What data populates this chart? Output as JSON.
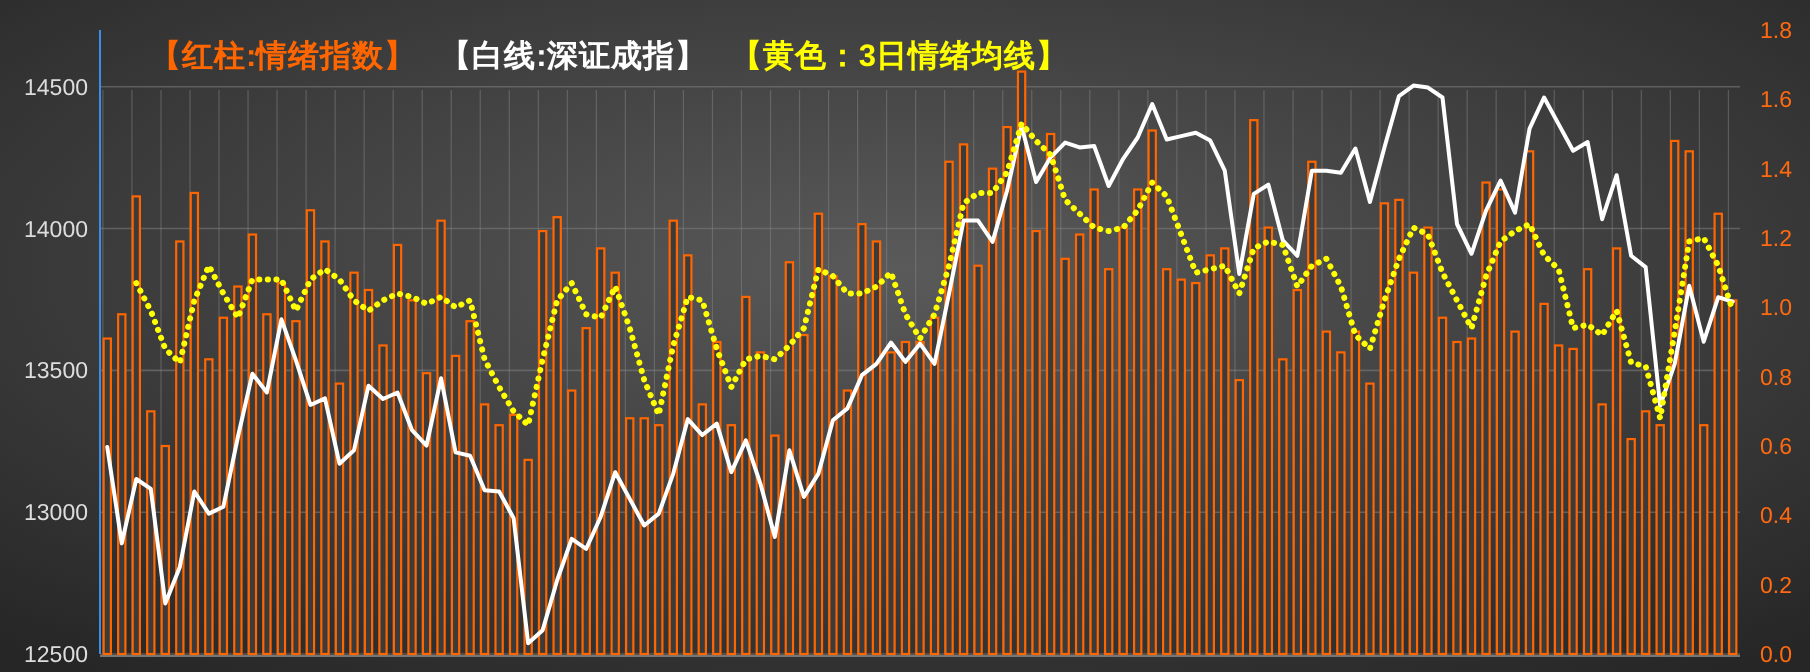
{
  "chart_data": {
    "type": "bar",
    "categories": [
      null,
      null,
      null,
      null,
      null,
      null,
      null,
      null,
      null,
      null,
      null,
      null,
      null,
      null,
      null,
      null,
      null,
      null,
      null,
      null,
      null,
      null,
      null,
      null,
      null,
      null,
      null,
      null,
      null,
      null,
      null,
      null,
      null,
      null,
      null,
      null,
      null,
      null,
      null,
      null,
      null,
      null,
      null,
      null,
      null,
      null,
      null,
      null,
      null,
      null,
      null,
      null,
      null,
      null,
      null,
      null,
      null,
      null,
      null,
      null,
      null,
      null,
      null,
      null,
      null,
      null,
      null,
      null,
      null,
      null,
      null,
      null,
      null,
      null,
      null,
      null,
      null,
      null,
      null,
      null,
      null,
      null,
      null,
      null,
      null,
      null,
      null,
      null,
      null,
      null,
      null,
      null,
      null,
      null,
      null,
      null,
      null,
      null,
      null,
      null,
      null,
      null,
      null,
      null,
      null,
      null,
      null,
      null,
      null,
      null,
      null,
      null,
      null
    ],
    "series": [
      {
        "name": "【红柱:情绪指数】",
        "axis": "y2",
        "color": "#ff6600",
        "values": [
          0.91,
          0.98,
          1.32,
          0.7,
          0.6,
          1.19,
          1.33,
          0.85,
          0.97,
          1.06,
          1.21,
          0.98,
          1.07,
          0.96,
          1.28,
          1.19,
          0.78,
          1.1,
          1.05,
          0.89,
          1.18,
          1.02,
          0.81,
          1.25,
          0.86,
          0.96,
          0.72,
          0.66,
          0.69,
          0.56,
          1.22,
          1.26,
          0.76,
          0.94,
          1.17,
          1.1,
          0.68,
          0.68,
          0.66,
          1.25,
          1.15,
          0.72,
          0.9,
          0.66,
          1.03,
          0.87,
          0.63,
          1.13,
          0.92,
          1.27,
          1.09,
          0.76,
          1.24,
          1.19,
          0.87,
          0.9,
          0.9,
          0.97,
          1.42,
          1.47,
          1.12,
          1.4,
          1.52,
          1.68,
          1.22,
          1.5,
          1.14,
          1.21,
          1.34,
          1.11,
          1.23,
          1.34,
          1.51,
          1.11,
          1.08,
          1.07,
          1.15,
          1.17,
          0.79,
          1.54,
          1.23,
          0.85,
          1.05,
          1.42,
          0.93,
          0.87,
          0.93,
          0.78,
          1.3,
          1.31,
          1.1,
          1.23,
          0.97,
          0.9,
          0.91,
          1.36,
          1.34,
          0.93,
          1.45,
          1.01,
          0.89,
          0.88,
          1.11,
          0.72,
          1.17,
          0.62,
          0.7,
          0.66,
          1.48,
          1.45,
          0.66,
          1.27,
          1.02
        ]
      },
      {
        "name": "【白线:深证成指】",
        "type": "line",
        "axis": "y",
        "color": "#ffffff",
        "line_style": "solid",
        "values": [
          13230,
          12890,
          13117,
          13082,
          12678,
          12807,
          13073,
          12995,
          13019,
          13265,
          13488,
          13422,
          13680,
          13535,
          13378,
          13401,
          13171,
          13218,
          13446,
          13399,
          13422,
          13289,
          13235,
          13472,
          13211,
          13199,
          13077,
          13073,
          12979,
          12538,
          12584,
          12760,
          12906,
          12871,
          12984,
          13141,
          13047,
          12953,
          12995,
          13136,
          13328,
          13272,
          13312,
          13141,
          13253,
          13101,
          12913,
          13218,
          13054,
          13136,
          13324,
          13366,
          13483,
          13523,
          13598,
          13530,
          13594,
          13523,
          13770,
          14028,
          14028,
          13953,
          14134,
          14361,
          14164,
          14251,
          14303,
          14286,
          14291,
          14150,
          14246,
          14321,
          14439,
          14314,
          14326,
          14338,
          14310,
          14204,
          13840,
          14122,
          14155,
          13958,
          13904,
          14204,
          14204,
          14197,
          14282,
          14094,
          14286,
          14467,
          14504,
          14497,
          14462,
          14016,
          13911,
          14063,
          14169,
          14056,
          14352,
          14462,
          14368,
          14274,
          14305,
          14033,
          14188,
          13904,
          13864,
          13375,
          13523,
          13798,
          13601,
          13758,
          13742
        ]
      },
      {
        "name": "【黄色：3日情绪均线】",
        "type": "line",
        "axis": "y2",
        "color": "#ffff00",
        "line_style": "dotted",
        "values": [
          null,
          null,
          1.07,
          0.99,
          0.88,
          0.84,
          1.02,
          1.12,
          1.04,
          0.97,
          1.08,
          1.08,
          1.08,
          0.99,
          1.08,
          1.11,
          1.08,
          1.02,
          0.99,
          1.02,
          1.04,
          1.03,
          1.01,
          1.03,
          1.0,
          1.02,
          0.85,
          0.77,
          0.7,
          0.66,
          0.85,
          1.02,
          1.07,
          0.98,
          0.97,
          1.06,
          0.94,
          0.79,
          0.69,
          0.89,
          1.03,
          1.02,
          0.88,
          0.77,
          0.85,
          0.86,
          0.85,
          0.89,
          0.94,
          1.11,
          1.09,
          1.04,
          1.04,
          1.06,
          1.1,
          0.98,
          0.91,
          0.98,
          1.12,
          1.3,
          1.33,
          1.33,
          1.39,
          1.53,
          1.48,
          1.44,
          1.31,
          1.27,
          1.23,
          1.22,
          1.23,
          1.28,
          1.36,
          1.32,
          1.21,
          1.1,
          1.11,
          1.12,
          1.04,
          1.17,
          1.19,
          1.18,
          1.06,
          1.12,
          1.14,
          1.06,
          0.92,
          0.88,
          1.02,
          1.14,
          1.23,
          1.21,
          1.1,
          1.02,
          0.94,
          1.09,
          1.19,
          1.22,
          1.24,
          1.15,
          1.11,
          0.94,
          0.95,
          0.92,
          0.99,
          0.84,
          0.83,
          0.68,
          0.93,
          1.19,
          1.2,
          1.12,
          0.99
        ]
      }
    ],
    "ylim": [
      12500,
      14700
    ],
    "yticks": [
      12500,
      13000,
      13500,
      14000,
      14500
    ],
    "y2lim": [
      0,
      1.8
    ],
    "y2ticks": [
      {
        "value": 0,
        "label": "0.0"
      },
      {
        "value": 0.2,
        "label": "0.2"
      },
      {
        "value": 0.4,
        "label": "0.4"
      },
      {
        "value": 0.6,
        "label": "0.6"
      },
      {
        "value": 0.8,
        "label": "0.8"
      },
      {
        "value": 1.0,
        "label": "1.0"
      },
      {
        "value": 1.2,
        "label": "1.2"
      },
      {
        "value": 1.4,
        "label": "1.4"
      },
      {
        "value": 1.6,
        "label": "1.6"
      },
      {
        "value": 1.8,
        "label": "1.8"
      }
    ],
    "grid": true,
    "tick_labels": "y"
  }
}
